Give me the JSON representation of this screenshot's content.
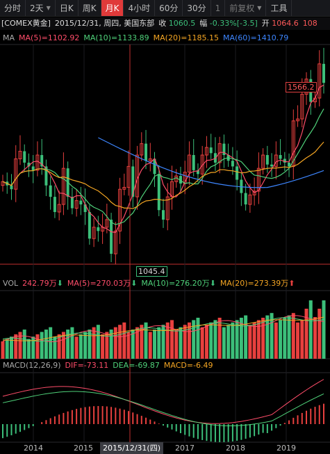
{
  "toolbar": {
    "items": [
      "分时",
      "2天",
      "日K",
      "周K",
      "月K",
      "4小时",
      "60分",
      "30分",
      "1",
      "前复权",
      "工具"
    ],
    "active_index": 4
  },
  "info": {
    "symbol": "[COMEX黄金]",
    "date": "2015/12/31, 周四, 美国东部",
    "close_label": "收",
    "close": "1060.5",
    "change_label": "幅",
    "change": "-0.33%[-3.5]",
    "open_label": "开",
    "open": "1064.6",
    "high_partial": "108"
  },
  "ma": {
    "label": "MA",
    "ma5": "MA(5)=1102.92",
    "ma10": "MA(10)=1133.89",
    "ma20": "MA(20)=1185.15",
    "ma60": "MA(60)=1410.79"
  },
  "vol": {
    "label": "VOL",
    "value": "242.79万",
    "ma5": "MA(5)=270.03万",
    "ma10": "MA(10)=276.20万",
    "ma20": "MA(20)=273.39万"
  },
  "macd": {
    "label": "MACD(12,26,9)",
    "dif": "DIF=-73.11",
    "dea": "DEA=-69.87",
    "macd": "MACD=-6.49"
  },
  "price_tags": {
    "high": "1566.2",
    "low": "1045.4"
  },
  "xaxis": {
    "labels": [
      "2014",
      "2015",
      "2017",
      "2018",
      "2019"
    ],
    "selected": "2015/12/31(四)"
  },
  "colors": {
    "up": "#e8403e",
    "down": "#3cbf7a",
    "ma5": "#ff4d6a",
    "ma10": "#4fd27a",
    "ma20": "#f5a623",
    "ma60": "#3d86ff"
  },
  "chart_data": {
    "type": "candlestick",
    "period": "monthly",
    "range": {
      "start": "2013-11",
      "end": "2020-01"
    },
    "crosshair_date": "2015-12-31",
    "last_bars": [
      {
        "date": "2015-12",
        "open": 1064.6,
        "close": 1060.5,
        "change_pct": -0.33,
        "change": -3.5
      }
    ],
    "extremes": {
      "high": 1566.2,
      "low": 1045.4
    },
    "indicators": {
      "MA5": 1102.92,
      "MA10": 1133.89,
      "MA20": 1185.15,
      "MA60": 1410.79,
      "VOL": "242.79万",
      "VOL_MA5": "270.03万",
      "VOL_MA10": "276.20万",
      "VOL_MA20": "273.39万",
      "DIF": -73.11,
      "DEA": -69.87,
      "MACD": -6.49
    }
  }
}
